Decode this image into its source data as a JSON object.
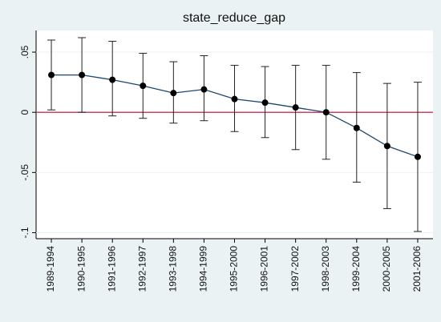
{
  "chart_data": {
    "type": "errorbar-line",
    "title": "state_reduce_gap",
    "categories": [
      "1989-1994",
      "1990-1995",
      "1991-1996",
      "1992-1997",
      "1993-1998",
      "1994-1999",
      "1995-2000",
      "1996-2001",
      "1997-2002",
      "1998-2003",
      "1999-2004",
      "2000-2005",
      "2001-2006"
    ],
    "values": [
      0.031,
      0.031,
      0.027,
      0.022,
      0.016,
      0.019,
      0.011,
      0.008,
      0.004,
      0.0,
      -0.013,
      -0.028,
      -0.037
    ],
    "ci_lower": [
      0.002,
      0.0,
      -0.003,
      -0.005,
      -0.009,
      -0.007,
      -0.016,
      -0.021,
      -0.031,
      -0.039,
      -0.058,
      -0.08,
      -0.099
    ],
    "ci_upper": [
      0.06,
      0.062,
      0.059,
      0.049,
      0.042,
      0.047,
      0.039,
      0.038,
      0.039,
      0.039,
      0.033,
      0.024,
      0.025
    ],
    "color": "#1a476f",
    "marker_color": "#000000",
    "reference_line": 0,
    "reference_color": "#c10534",
    "ylim": [
      -0.105,
      0.068
    ],
    "yticks": [
      {
        "value": 0.05,
        "label": ".05"
      },
      0,
      {
        "value": -0.05,
        "label": "-.05"
      },
      {
        "value": -0.1,
        "label": "-.1"
      }
    ],
    "grid": true
  }
}
